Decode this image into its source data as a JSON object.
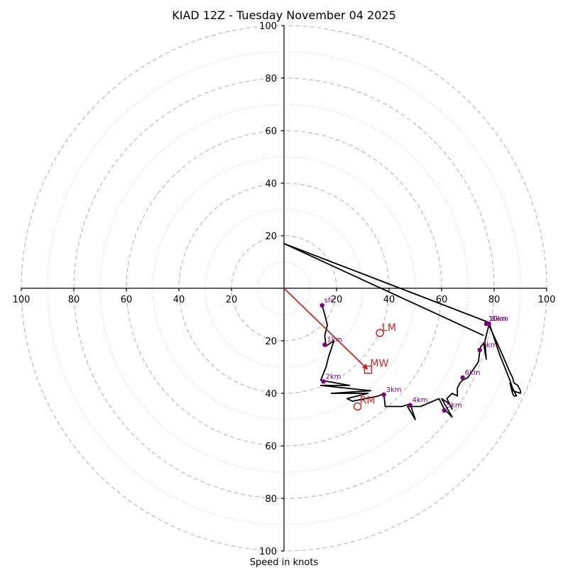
{
  "chart_data": {
    "type": "hodograph",
    "title": "KIAD 12Z - Tuesday November 04 2025",
    "xlabel": "Speed in knots",
    "units": "knots",
    "xlim": [
      -100,
      100
    ],
    "ylim": [
      -100,
      100
    ],
    "major_rings": [
      20,
      40,
      60,
      80,
      100
    ],
    "minor_rings": [
      10,
      30,
      50,
      70,
      90
    ],
    "x_ticks": [
      {
        "value": -100,
        "label": "100"
      },
      {
        "value": -80,
        "label": "80"
      },
      {
        "value": -60,
        "label": "60"
      },
      {
        "value": -40,
        "label": "40"
      },
      {
        "value": -20,
        "label": "20"
      },
      {
        "value": 20,
        "label": "20"
      },
      {
        "value": 40,
        "label": "40"
      },
      {
        "value": 60,
        "label": "60"
      },
      {
        "value": 80,
        "label": "80"
      },
      {
        "value": 100,
        "label": "100"
      }
    ],
    "y_ticks": [
      {
        "value": 100,
        "label": "100"
      },
      {
        "value": 80,
        "label": "80"
      },
      {
        "value": 60,
        "label": "60"
      },
      {
        "value": 40,
        "label": "40"
      },
      {
        "value": 20,
        "label": "20"
      },
      {
        "value": -20,
        "label": "20"
      },
      {
        "value": -40,
        "label": "40"
      },
      {
        "value": -60,
        "label": "60"
      },
      {
        "value": -80,
        "label": "80"
      },
      {
        "value": -100,
        "label": "100"
      }
    ],
    "series": [
      {
        "name": "hodograph",
        "color": "#000000",
        "points": [
          [
            14.5,
            -6.5
          ],
          [
            15.5,
            -10
          ],
          [
            16.5,
            -14
          ],
          [
            15.5,
            -18
          ],
          [
            16,
            -22
          ],
          [
            19,
            -20
          ],
          [
            17,
            -26
          ],
          [
            16,
            -30
          ],
          [
            14,
            -35
          ],
          [
            25,
            -37
          ],
          [
            14,
            -37
          ],
          [
            33,
            -39
          ],
          [
            18,
            -40
          ],
          [
            32,
            -40
          ],
          [
            24,
            -42
          ],
          [
            26,
            -43
          ],
          [
            36,
            -41
          ],
          [
            38,
            -40
          ],
          [
            38.5,
            -45
          ],
          [
            45,
            -45
          ],
          [
            48,
            -44
          ],
          [
            50,
            -50
          ],
          [
            47,
            -45
          ],
          [
            52,
            -45
          ],
          [
            59,
            -42
          ],
          [
            61,
            -46
          ],
          [
            64,
            -49
          ],
          [
            60,
            -42
          ],
          [
            63,
            -44
          ],
          [
            64,
            -46
          ],
          [
            62,
            -42
          ],
          [
            64,
            -40
          ],
          [
            66,
            -41
          ],
          [
            66,
            -38
          ],
          [
            67,
            -36
          ],
          [
            68,
            -35
          ],
          [
            70,
            -34
          ],
          [
            72,
            -31
          ],
          [
            74,
            -28
          ],
          [
            74.5,
            -24
          ],
          [
            75,
            -22
          ],
          [
            76,
            -21
          ],
          [
            77,
            -27
          ],
          [
            76.5,
            -20
          ],
          [
            78,
            -14
          ],
          [
            83,
            -25
          ],
          [
            86,
            -32
          ],
          [
            87,
            -34
          ],
          [
            87.5,
            -36
          ],
          [
            89,
            -37
          ],
          [
            90,
            -39
          ],
          [
            90,
            -40
          ],
          [
            87,
            -39
          ],
          [
            86,
            -36
          ],
          [
            87,
            -40
          ],
          [
            87.5,
            -41
          ],
          [
            88.5,
            -41
          ],
          [
            87,
            -38
          ],
          [
            86,
            -35
          ],
          [
            84,
            -30
          ],
          [
            82,
            -25
          ],
          [
            78,
            -13
          ],
          [
            0,
            17
          ],
          [
            76,
            -18
          ]
        ]
      },
      {
        "name": "bunkers-right-mover",
        "u": 28,
        "v": -45
      },
      {
        "name": "bunkers-left-mover",
        "u": 36.5,
        "v": -17
      },
      {
        "name": "mean-wind",
        "u": 32,
        "v": -31
      }
    ],
    "height_markers": [
      {
        "label": "sfc",
        "u": 14.5,
        "v": -6.5
      },
      {
        "label": "1km",
        "u": 15.5,
        "v": -21.5
      },
      {
        "label": "2km",
        "u": 15,
        "v": -35.5
      },
      {
        "label": "3km",
        "u": 38,
        "v": -40.5
      },
      {
        "label": "4km",
        "u": 48,
        "v": -44.5
      },
      {
        "label": "5km",
        "u": 61,
        "v": -46.5
      },
      {
        "label": "6km",
        "u": 68,
        "v": -34
      },
      {
        "label": "7km",
        "u": 74.5,
        "v": -23.5
      },
      {
        "label": "8km",
        "u": 78,
        "v": -13.5
      },
      {
        "label": "10km",
        "u": 77,
        "v": -13.5
      }
    ],
    "motion_labels": {
      "rm": "RM",
      "lm": "LM",
      "mw": "MW"
    },
    "colors": {
      "hodograph": "#000000",
      "markers": "#800080",
      "motion": "#cc2222",
      "ring": "#bbbbbb"
    }
  }
}
